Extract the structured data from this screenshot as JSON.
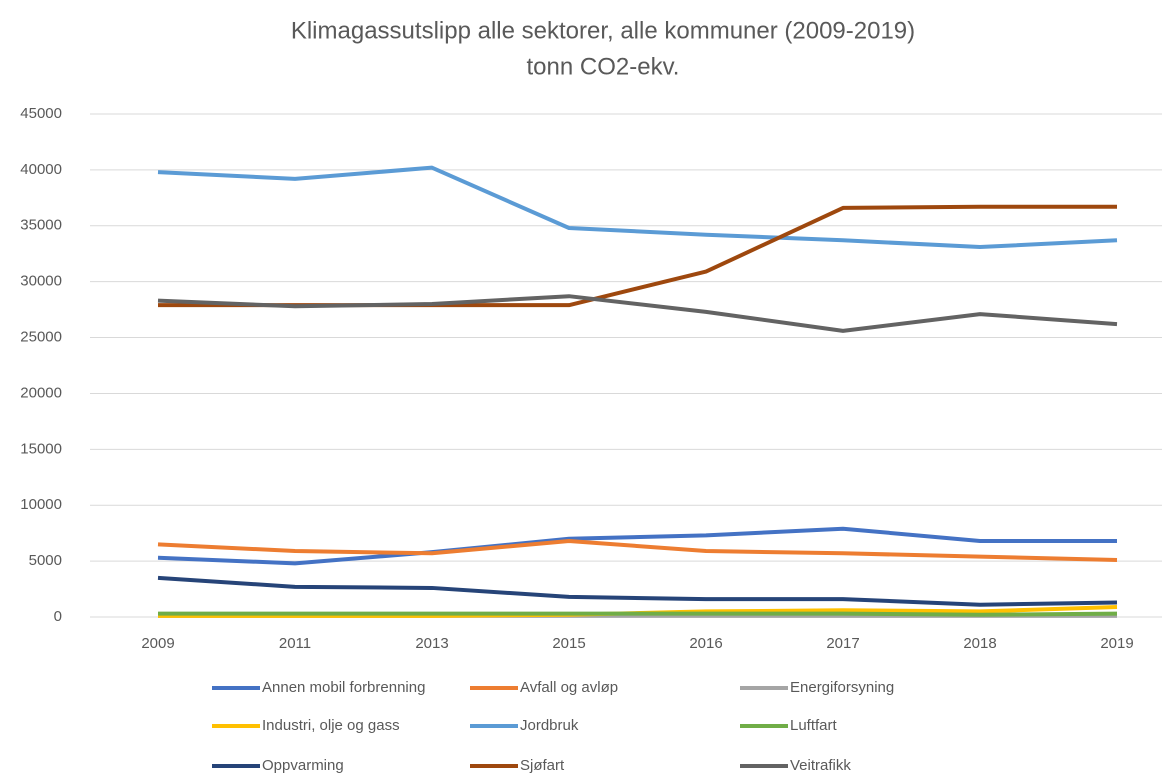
{
  "chart_data": {
    "type": "line",
    "title": "Klimagassutslipp alle sektorer, alle kommuner (2009-2019)",
    "subtitle": "tonn CO2-ekv.",
    "categories": [
      "2009",
      "2011",
      "2013",
      "2015",
      "2016",
      "2017",
      "2018",
      "2019"
    ],
    "ylim": [
      0,
      45000
    ],
    "yticks": [
      0,
      5000,
      10000,
      15000,
      20000,
      25000,
      30000,
      35000,
      40000,
      45000
    ],
    "grid": true,
    "legend": "bottom",
    "series": [
      {
        "name": "Annen mobil forbrenning",
        "color": "#4472c4",
        "values": [
          5300,
          4800,
          5800,
          7000,
          7300,
          7900,
          6800,
          6800
        ]
      },
      {
        "name": "Avfall og avløp",
        "color": "#ed7d31",
        "values": [
          6500,
          5900,
          5700,
          6800,
          5900,
          5700,
          5400,
          5100
        ]
      },
      {
        "name": "Energiforsyning",
        "color": "#a5a5a5",
        "values": [
          100,
          100,
          100,
          100,
          100,
          100,
          100,
          100
        ]
      },
      {
        "name": "Industri, olje og gass",
        "color": "#ffc000",
        "values": [
          100,
          100,
          100,
          200,
          500,
          600,
          500,
          900
        ]
      },
      {
        "name": "Jordbruk",
        "color": "#5b9bd5",
        "values": [
          39800,
          39200,
          40200,
          34800,
          34200,
          33700,
          33100,
          33700
        ]
      },
      {
        "name": "Luftfart",
        "color": "#70ad47",
        "values": [
          300,
          300,
          300,
          300,
          300,
          300,
          200,
          300
        ]
      },
      {
        "name": "Oppvarming",
        "color": "#264478",
        "values": [
          3500,
          2700,
          2600,
          1800,
          1600,
          1600,
          1100,
          1300
        ]
      },
      {
        "name": "Sjøfart",
        "color": "#9e480e",
        "values": [
          27900,
          27900,
          27900,
          27900,
          30900,
          36600,
          36700,
          36700
        ]
      },
      {
        "name": "Veitrafikk",
        "color": "#636363",
        "values": [
          28300,
          27800,
          28000,
          28700,
          27300,
          25600,
          27100,
          26200
        ]
      }
    ]
  }
}
